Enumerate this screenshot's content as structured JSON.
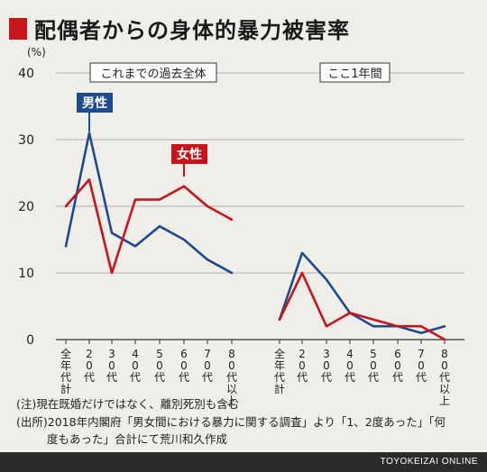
{
  "title": "配偶者からの身体的暴力被害率",
  "chart_data": {
    "type": "line",
    "y_unit": "(%)",
    "ylim": [
      0,
      40
    ],
    "y_ticks": [
      0,
      10,
      20,
      30,
      40
    ],
    "panels": [
      {
        "label": "これまでの過去全体",
        "categories": [
          "全年代計",
          "20代",
          "30代",
          "40代",
          "50代",
          "60代",
          "70代",
          "80代以上"
        ],
        "series": [
          {
            "name": "男性",
            "color": "#1d4a91",
            "values": [
              14,
              31,
              16,
              14,
              17,
              15,
              12,
              10
            ]
          },
          {
            "name": "女性",
            "color": "#c8151b",
            "values": [
              20,
              24,
              10,
              21,
              21,
              23,
              20,
              18
            ]
          }
        ]
      },
      {
        "label": "ここ1年間",
        "categories": [
          "全年代計",
          "20代",
          "30代",
          "40代",
          "50代",
          "60代",
          "70代",
          "80代以上"
        ],
        "series": [
          {
            "color": "#1d4a91",
            "values": [
              3,
              13,
              9,
              4,
              2,
              2,
              1,
              2
            ]
          },
          {
            "color": "#c8151b",
            "values": [
              3,
              10,
              2,
              4,
              3,
              2,
              2,
              0
            ]
          }
        ]
      }
    ]
  },
  "notes": {
    "note1": "(注)現在既婚だけではなく、離別死別も含む",
    "note2": "(出所)2018年内閣府「男女間における暴力に関する調査」より「1、2度あった」「何",
    "note3": "度もあった」合計にて荒川和久作成"
  },
  "footer": "TOYOKEIZAI ONLINE"
}
